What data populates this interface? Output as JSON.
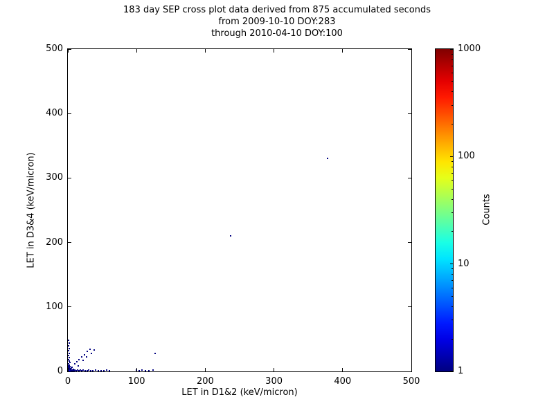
{
  "chart_data": {
    "type": "scatter",
    "title": {
      "line1": "183 day SEP cross plot data derived from 875 accumulated seconds",
      "line2": "from 2009-10-10 DOY:283",
      "line3": "through 2010-04-10 DOY:100"
    },
    "xlabel": "LET in D1&2 (keV/micron)",
    "ylabel": "LET in D3&4 (keV/micron)",
    "xlim": [
      0,
      500
    ],
    "ylim": [
      0,
      500
    ],
    "x_ticks": [
      0,
      100,
      200,
      300,
      400,
      500
    ],
    "y_ticks": [
      0,
      100,
      200,
      300,
      400,
      500
    ],
    "grid": false,
    "point_color_low": "#00007f",
    "colorbar": {
      "label": "Counts",
      "scale": "log",
      "min": 1,
      "max": 1000,
      "ticks": [
        1,
        10,
        100,
        1000
      ],
      "tick_labels": [
        "1",
        "10",
        "100",
        "1000"
      ],
      "colormap": "jet"
    },
    "points": [
      [
        1,
        1,
        5
      ],
      [
        2,
        1,
        3
      ],
      [
        1,
        2,
        3
      ],
      [
        2,
        2,
        2
      ],
      [
        3,
        1,
        2
      ],
      [
        1,
        3,
        2
      ],
      [
        3,
        3,
        1
      ],
      [
        4,
        2,
        1
      ],
      [
        2,
        4,
        1
      ],
      [
        5,
        1,
        1
      ],
      [
        1,
        5,
        1
      ],
      [
        4,
        4,
        1
      ],
      [
        6,
        2,
        1
      ],
      [
        2,
        6,
        1
      ],
      [
        7,
        1,
        1
      ],
      [
        1,
        7,
        1
      ],
      [
        8,
        3,
        1
      ],
      [
        3,
        8,
        1
      ],
      [
        9,
        1,
        1
      ],
      [
        1,
        9,
        1
      ],
      [
        5,
        5,
        1
      ],
      [
        6,
        6,
        1
      ],
      [
        10,
        2,
        1
      ],
      [
        2,
        10,
        1
      ],
      [
        12,
        1,
        1
      ],
      [
        1,
        12,
        1
      ],
      [
        3,
        14,
        1
      ],
      [
        2,
        16,
        1
      ],
      [
        14,
        2,
        1
      ],
      [
        16,
        1,
        1
      ],
      [
        1,
        18,
        1
      ],
      [
        2,
        21,
        1
      ],
      [
        18,
        2,
        1
      ],
      [
        20,
        1,
        1
      ],
      [
        1,
        25,
        1
      ],
      [
        2,
        28,
        1
      ],
      [
        22,
        2,
        1
      ],
      [
        25,
        1,
        1
      ],
      [
        1,
        32,
        1
      ],
      [
        2,
        35,
        1
      ],
      [
        28,
        1,
        1
      ],
      [
        30,
        2,
        1
      ],
      [
        1,
        40,
        1
      ],
      [
        2,
        44,
        1
      ],
      [
        33,
        1,
        1
      ],
      [
        36,
        1,
        1
      ],
      [
        1,
        48,
        1
      ],
      [
        40,
        2,
        1
      ],
      [
        44,
        1,
        1
      ],
      [
        48,
        1,
        1
      ],
      [
        52,
        1,
        1
      ],
      [
        56,
        2,
        1
      ],
      [
        60,
        1,
        1
      ],
      [
        10,
        12,
        1
      ],
      [
        13,
        15,
        1
      ],
      [
        16,
        18,
        1
      ],
      [
        20,
        22,
        1
      ],
      [
        24,
        26,
        1
      ],
      [
        28,
        31,
        1
      ],
      [
        32,
        34,
        1
      ],
      [
        15,
        9,
        1
      ],
      [
        22,
        17,
        1
      ],
      [
        27,
        22,
        1
      ],
      [
        34,
        28,
        1
      ],
      [
        38,
        33,
        1
      ],
      [
        100,
        2,
        1
      ],
      [
        104,
        1,
        1
      ],
      [
        108,
        2,
        1
      ],
      [
        113,
        1,
        1
      ],
      [
        118,
        1,
        1
      ],
      [
        124,
        2,
        1
      ],
      [
        127,
        28,
        1
      ],
      [
        237,
        210,
        1
      ],
      [
        378,
        330,
        1
      ]
    ]
  }
}
